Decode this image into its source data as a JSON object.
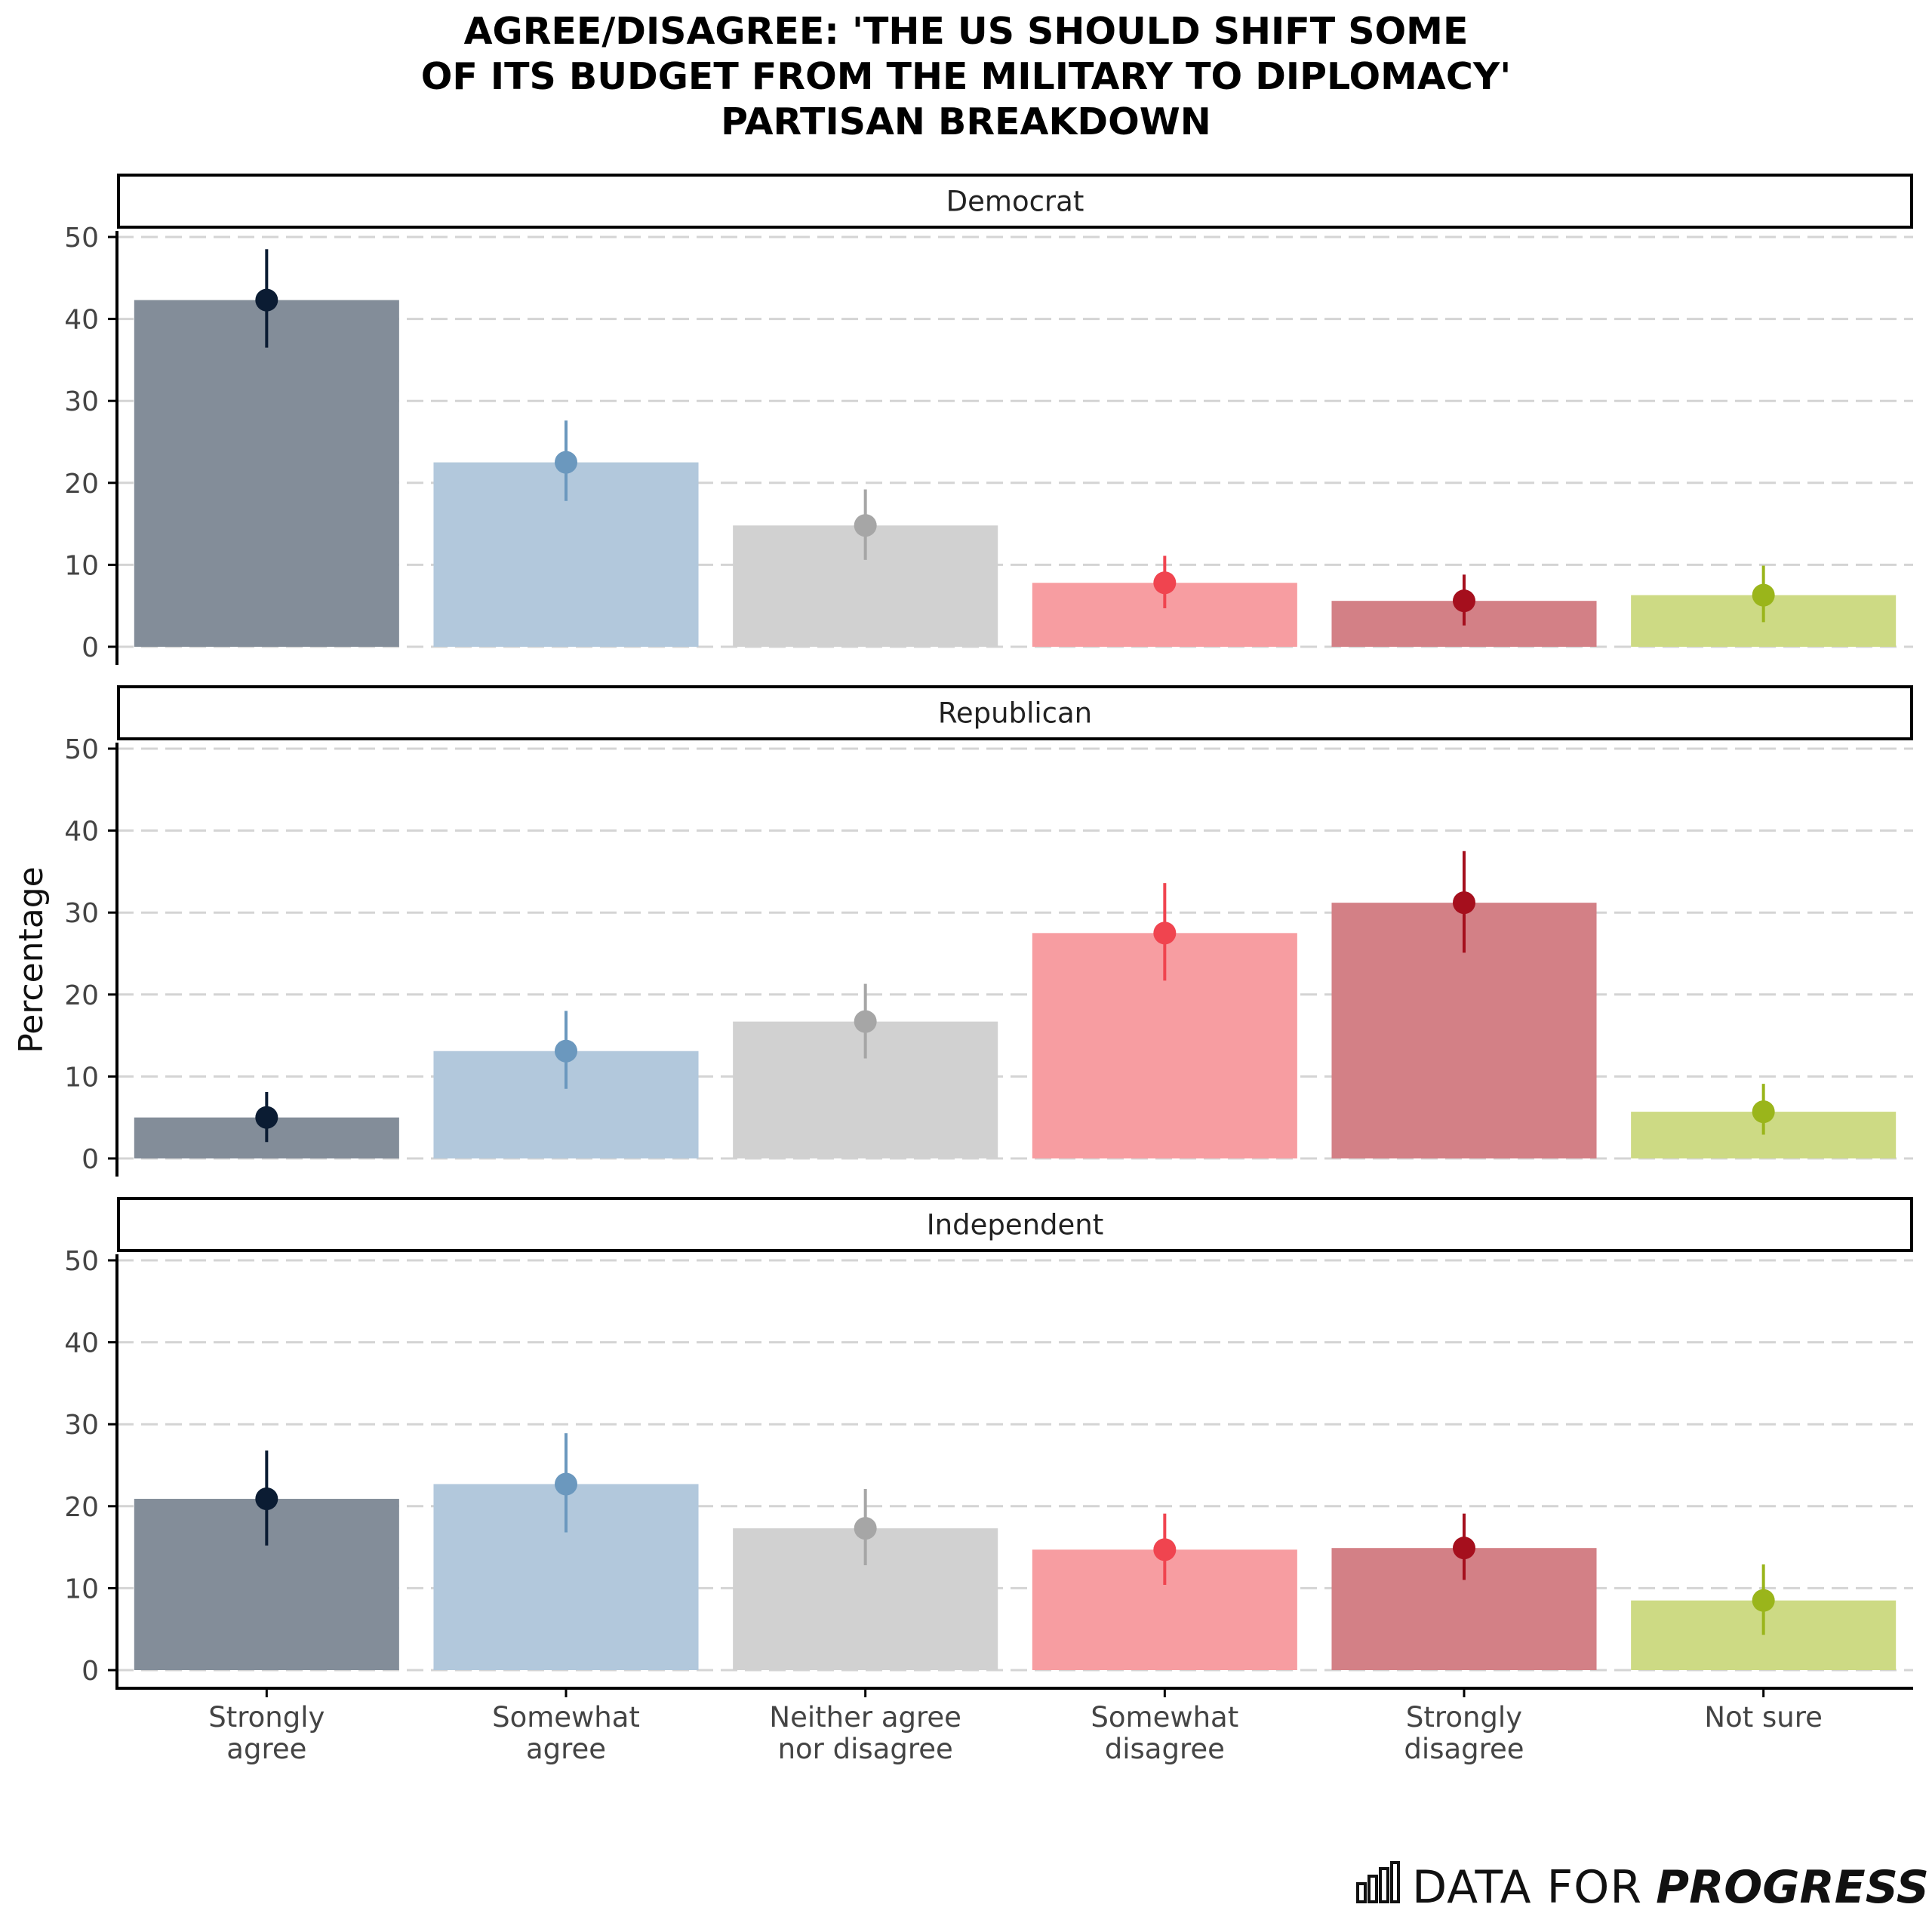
{
  "chart_data": {
    "type": "bar",
    "title_lines": [
      "AGREE/DISAGREE: 'THE US SHOULD SHIFT SOME",
      "OF ITS BUDGET FROM THE MILITARY TO DIPLOMACY'",
      "PARTISAN BREAKDOWN"
    ],
    "ylabel": "Percentage",
    "ylim": [
      0,
      50
    ],
    "yticks": [
      0,
      10,
      20,
      30,
      40,
      50
    ],
    "grid": "horizontal dashed",
    "categories": [
      "Strongly agree",
      "Somewhat agree",
      "Neither agree nor disagree",
      "Somewhat disagree",
      "Strongly disagree",
      "Not sure"
    ],
    "category_label_lines": [
      [
        "Strongly",
        "agree"
      ],
      [
        "Somewhat",
        "agree"
      ],
      [
        "Neither agree",
        "nor disagree"
      ],
      [
        "Somewhat",
        "disagree"
      ],
      [
        "Strongly",
        "disagree"
      ],
      [
        "Not sure"
      ]
    ],
    "category_colors": [
      "#0b1c33",
      "#6b98be",
      "#a6a6a6",
      "#f0444f",
      "#a50f1d",
      "#9ab51b"
    ],
    "bar_colors": [
      "#838d99",
      "#b2c8dc",
      "#d1d1d1",
      "#f79da1",
      "#d38086",
      "#cdda84"
    ],
    "facets": [
      {
        "name": "Democrat",
        "values": [
          42.3,
          22.5,
          14.8,
          7.8,
          5.6,
          6.3
        ],
        "error_low": [
          36.5,
          17.8,
          10.6,
          4.7,
          2.6,
          3.0
        ],
        "error_high": [
          48.5,
          27.6,
          19.2,
          11.1,
          8.8,
          9.9
        ]
      },
      {
        "name": "Republican",
        "values": [
          5.0,
          13.1,
          16.7,
          27.5,
          31.2,
          5.7
        ],
        "error_low": [
          2.0,
          8.5,
          12.2,
          21.7,
          25.1,
          2.9
        ],
        "error_high": [
          8.1,
          18.0,
          21.3,
          33.6,
          37.5,
          9.1
        ]
      },
      {
        "name": "Independent",
        "values": [
          20.9,
          22.7,
          17.3,
          14.7,
          14.9,
          8.5
        ],
        "error_low": [
          15.2,
          16.8,
          12.8,
          10.4,
          11.0,
          4.3
        ],
        "error_high": [
          26.8,
          28.9,
          22.1,
          19.1,
          19.1,
          12.9
        ]
      }
    ]
  },
  "brand": {
    "icon": "bar-chart-logo-icon",
    "text_light": "DATA FOR",
    "text_bold": "PROGRESS"
  }
}
